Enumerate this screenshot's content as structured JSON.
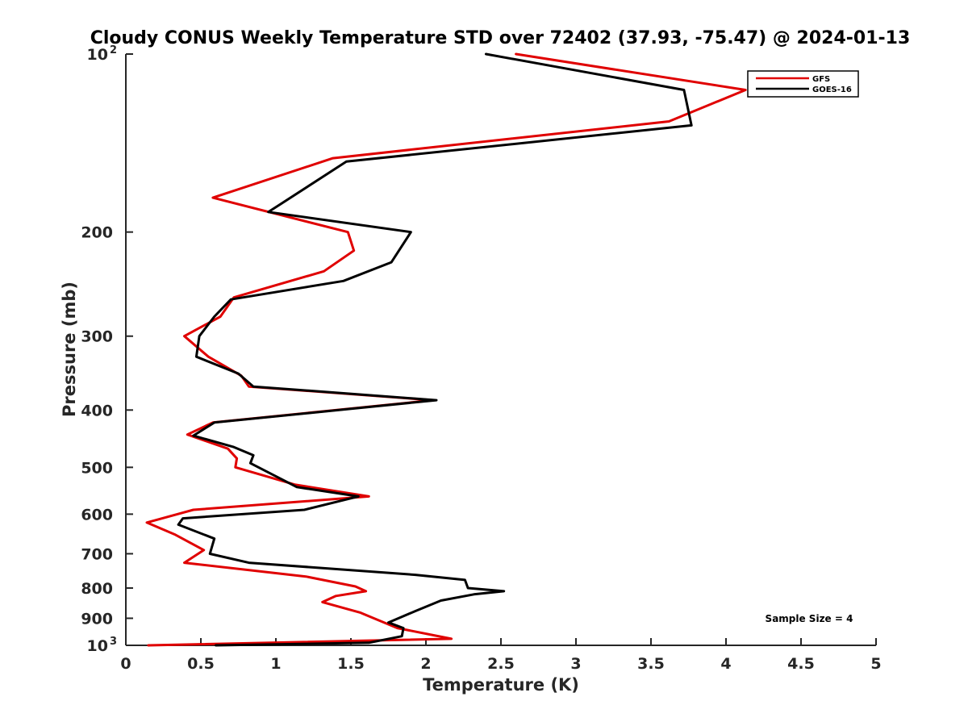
{
  "chart_data": {
    "type": "line",
    "title": "Cloudy CONUS Weekly Temperature STD over 72402 (37.93, -75.47) @ 2024-01-13",
    "xlabel": "Temperature (K)",
    "ylabel": "Pressure (mb)",
    "xlim": [
      0,
      5
    ],
    "ylim": [
      100,
      1000
    ],
    "y_scale": "log",
    "y_reversed": true,
    "x_ticks": [
      0,
      0.5,
      1,
      1.5,
      2,
      2.5,
      3,
      3.5,
      4,
      4.5,
      5
    ],
    "x_tick_labels": [
      "0",
      "0.5",
      "1",
      "1.5",
      "2",
      "2.5",
      "3",
      "3.5",
      "4",
      "4.5",
      "5"
    ],
    "y_ticks": [
      {
        "value": 100,
        "label": "10",
        "sup": "2"
      },
      {
        "value": 200,
        "label": "200"
      },
      {
        "value": 300,
        "label": "300"
      },
      {
        "value": 400,
        "label": "400"
      },
      {
        "value": 500,
        "label": "500"
      },
      {
        "value": 600,
        "label": "600"
      },
      {
        "value": 700,
        "label": "700"
      },
      {
        "value": 800,
        "label": "800"
      },
      {
        "value": 900,
        "label": "900"
      },
      {
        "value": 1000,
        "label": "10",
        "sup": "3"
      }
    ],
    "grid": false,
    "legend_position": "top-right",
    "annotation": "Sample Size = 4",
    "series": [
      {
        "name": "GFS",
        "color": "#e00000",
        "points": [
          [
            2.6,
            100
          ],
          [
            4.13,
            115
          ],
          [
            3.62,
            130
          ],
          [
            1.38,
            150
          ],
          [
            0.58,
            175
          ],
          [
            1.48,
            200
          ],
          [
            1.52,
            215
          ],
          [
            1.32,
            233
          ],
          [
            0.72,
            258
          ],
          [
            0.63,
            278
          ],
          [
            0.39,
            300
          ],
          [
            0.55,
            325
          ],
          [
            0.77,
            350
          ],
          [
            0.82,
            365
          ],
          [
            2.05,
            385
          ],
          [
            0.58,
            420
          ],
          [
            0.41,
            440
          ],
          [
            0.68,
            465
          ],
          [
            0.74,
            483
          ],
          [
            0.73,
            500
          ],
          [
            1.13,
            535
          ],
          [
            1.62,
            560
          ],
          [
            0.45,
            590
          ],
          [
            0.14,
            620
          ],
          [
            0.33,
            650
          ],
          [
            0.52,
            690
          ],
          [
            0.39,
            725
          ],
          [
            1.2,
            765
          ],
          [
            1.53,
            795
          ],
          [
            1.6,
            810
          ],
          [
            1.4,
            825
          ],
          [
            1.31,
            845
          ],
          [
            1.56,
            880
          ],
          [
            1.81,
            935
          ],
          [
            2.17,
            975
          ],
          [
            0.15,
            1000
          ]
        ]
      },
      {
        "name": "GOES-16",
        "color": "#000000",
        "points": [
          [
            2.4,
            100
          ],
          [
            3.72,
            115
          ],
          [
            3.77,
            132
          ],
          [
            1.47,
            152
          ],
          [
            0.95,
            185
          ],
          [
            1.9,
            200
          ],
          [
            1.77,
            225
          ],
          [
            1.45,
            242
          ],
          [
            0.7,
            260
          ],
          [
            0.59,
            278
          ],
          [
            0.49,
            300
          ],
          [
            0.47,
            325
          ],
          [
            0.75,
            347
          ],
          [
            0.85,
            365
          ],
          [
            2.07,
            385
          ],
          [
            0.59,
            420
          ],
          [
            0.45,
            442
          ],
          [
            0.72,
            462
          ],
          [
            0.85,
            477
          ],
          [
            0.83,
            492
          ],
          [
            1.14,
            540
          ],
          [
            1.55,
            560
          ],
          [
            1.19,
            590
          ],
          [
            0.38,
            610
          ],
          [
            0.35,
            625
          ],
          [
            0.59,
            660
          ],
          [
            0.56,
            700
          ],
          [
            0.82,
            725
          ],
          [
            1.93,
            760
          ],
          [
            2.26,
            775
          ],
          [
            2.28,
            800
          ],
          [
            2.52,
            810
          ],
          [
            2.32,
            820
          ],
          [
            2.1,
            840
          ],
          [
            1.93,
            875
          ],
          [
            1.75,
            915
          ],
          [
            1.85,
            935
          ],
          [
            1.84,
            965
          ],
          [
            1.62,
            990
          ],
          [
            0.6,
            1000
          ]
        ]
      }
    ]
  }
}
